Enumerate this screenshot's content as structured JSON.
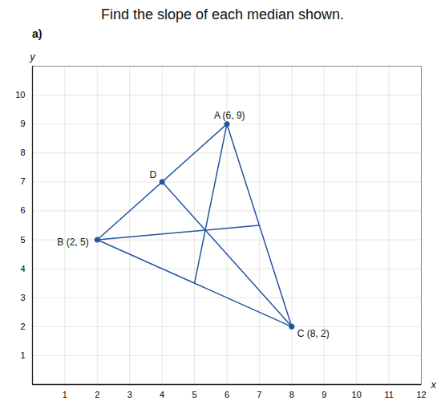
{
  "chart_data": {
    "type": "line",
    "title": "Find the slope of each median shown.",
    "subtitle": "a)",
    "xlabel": "x",
    "ylabel": "y",
    "xlim": [
      0,
      12
    ],
    "ylim": [
      0,
      11
    ],
    "xticks": [
      1,
      2,
      3,
      4,
      5,
      6,
      7,
      8,
      9,
      10,
      11,
      12
    ],
    "yticks": [
      1,
      2,
      3,
      4,
      5,
      6,
      7,
      8,
      9,
      10
    ],
    "grid": true,
    "color": "#2255a0",
    "marker": "circle",
    "lines": [
      {
        "x": [
          6,
          2
        ],
        "y": [
          9,
          5
        ]
      },
      {
        "x": [
          2,
          8
        ],
        "y": [
          5,
          2
        ]
      },
      {
        "x": [
          6,
          8
        ],
        "y": [
          9,
          2
        ]
      },
      {
        "x": [
          6,
          5
        ],
        "y": [
          9,
          3.5
        ]
      },
      {
        "x": [
          2,
          7
        ],
        "y": [
          5,
          5.5
        ]
      },
      {
        "x": [
          8,
          4
        ],
        "y": [
          2,
          7
        ]
      }
    ],
    "points": [
      {
        "label": "A (6, 9)",
        "x": 6,
        "y": 9
      },
      {
        "label": "B (2, 5)",
        "x": 2,
        "y": 5
      },
      {
        "label": "C (8, 2)",
        "x": 8,
        "y": 2
      },
      {
        "label": "D",
        "x": 4,
        "y": 7
      }
    ]
  }
}
